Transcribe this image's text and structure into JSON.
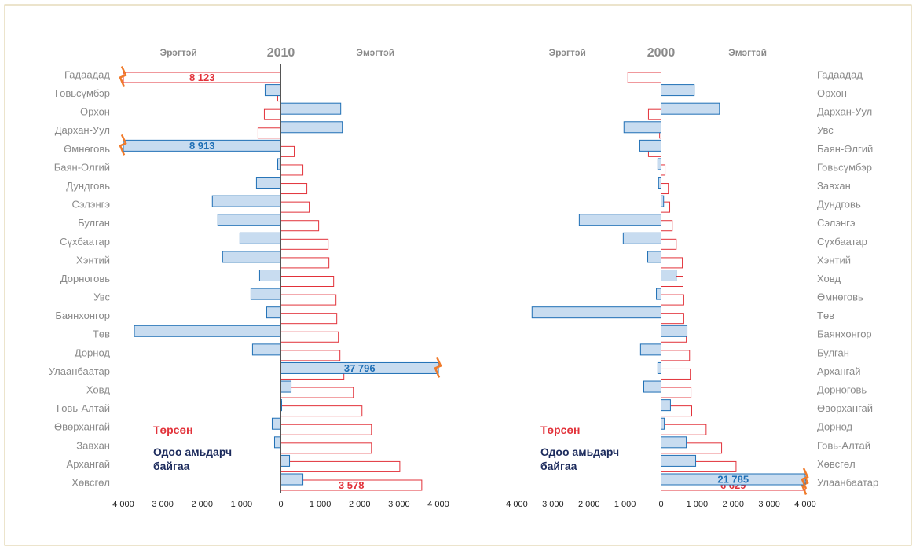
{
  "chart_data": [
    {
      "type": "bar",
      "orientation": "horizontal",
      "title": "2010",
      "left_label": "Эрэгтэй",
      "right_label": "Эмэгтэй",
      "category_side": "left",
      "categories": [
        "Гадаадад",
        "Говьсүмбэр",
        "Орхон",
        "Дархан-Уул",
        "Өмнөговь",
        "Баян-Өлгий",
        "Дундговь",
        "Сэлэнгэ",
        "Булган",
        "Сүхбаатар",
        "Хэнтий",
        "Дорноговь",
        "Увс",
        "Баянхонгор",
        "Төв",
        "Дорнод",
        "Улаанбаатар",
        "Ховд",
        "Говь-Алтай",
        "Өвөрхангай",
        "Завхан",
        "Архангай",
        "Хөвсгөл"
      ],
      "series": [
        {
          "name": "Төрсөн",
          "color": "#e2323a",
          "values": [
            -8123,
            -80,
            -420,
            -580,
            340,
            560,
            660,
            720,
            960,
            1200,
            1220,
            1340,
            1400,
            1420,
            1460,
            1500,
            1600,
            1840,
            2060,
            2300,
            2300,
            3020,
            3578
          ],
          "value_labels": [
            "8 123",
            null,
            null,
            null,
            null,
            null,
            null,
            null,
            null,
            null,
            null,
            null,
            null,
            null,
            null,
            null,
            null,
            null,
            null,
            null,
            null,
            null,
            "3 578"
          ]
        },
        {
          "name": "Одоо амьдарч байгаа",
          "color": "#1f6fb5",
          "values": [
            null,
            -400,
            1520,
            1560,
            -8913,
            -80,
            -620,
            -1740,
            -1600,
            -1040,
            -1480,
            -540,
            -760,
            -360,
            -3720,
            -720,
            37796,
            260,
            20,
            -220,
            -160,
            220,
            560
          ],
          "value_labels": [
            null,
            null,
            null,
            null,
            "8 913",
            null,
            null,
            null,
            null,
            null,
            null,
            null,
            null,
            null,
            null,
            null,
            "37 796",
            null,
            null,
            null,
            null,
            null,
            null
          ]
        }
      ],
      "xlim": [
        -4000,
        4000
      ],
      "xticks": [
        {
          "value": -4000,
          "label": "4 000"
        },
        {
          "value": -3000,
          "label": "3 000"
        },
        {
          "value": -2000,
          "label": "2 000"
        },
        {
          "value": -1000,
          "label": "1 000"
        },
        0,
        {
          "value": 1000,
          "label": "1 000"
        },
        {
          "value": 2000,
          "label": "2 000"
        },
        {
          "value": 3000,
          "label": "3 000"
        },
        {
          "value": 4000,
          "label": "4 000"
        }
      ]
    },
    {
      "type": "bar",
      "orientation": "horizontal",
      "title": "2000",
      "left_label": "Эрэгтэй",
      "right_label": "Эмэгтэй",
      "category_side": "right",
      "categories": [
        "Гадаадад",
        "Орхон",
        "Дархан-Уул",
        "Увс",
        "Баян-Өлгий",
        "Говьсүмбэр",
        "Завхан",
        "Дундговь",
        "Сэлэнгэ",
        "Сүхбаатар",
        "Хэнтий",
        "Ховд",
        "Өмнөговь",
        "Төв",
        "Баянхонгор",
        "Булган",
        "Архангай",
        "Дорноговь",
        "Өвөрхангай",
        "Дорнод",
        "Говь-Алтай",
        "Хөвсгөл",
        "Улаанбаатар"
      ],
      "series": [
        {
          "name": "Төрсөн",
          "color": "#e2323a",
          "values": [
            -920,
            null,
            -350,
            -40,
            -350,
            110,
            200,
            240,
            310,
            420,
            590,
            610,
            630,
            630,
            700,
            790,
            810,
            830,
            850,
            1250,
            1680,
            2080,
            6629
          ],
          "value_labels": [
            null,
            null,
            null,
            null,
            null,
            null,
            null,
            null,
            null,
            null,
            null,
            null,
            null,
            null,
            null,
            null,
            null,
            null,
            null,
            null,
            null,
            null,
            "6 629"
          ]
        },
        {
          "name": "Одоо амьдарч байгаа",
          "color": "#1f6fb5",
          "values": [
            null,
            920,
            1620,
            -1030,
            -590,
            -90,
            -70,
            70,
            -2270,
            -1050,
            -370,
            420,
            -130,
            -3580,
            720,
            -570,
            -90,
            -480,
            260,
            90,
            700,
            960,
            21785
          ],
          "value_labels": [
            null,
            null,
            null,
            null,
            null,
            null,
            null,
            null,
            null,
            null,
            null,
            null,
            null,
            null,
            null,
            null,
            null,
            null,
            null,
            null,
            null,
            null,
            "21 785"
          ]
        }
      ],
      "xlim": [
        -4000,
        4000
      ],
      "xticks": [
        {
          "value": -4000,
          "label": "4 000"
        },
        {
          "value": -3000,
          "label": "3 000"
        },
        {
          "value": -2000,
          "label": "2 000"
        },
        {
          "value": -1000,
          "label": "1 000"
        },
        0,
        {
          "value": 1000,
          "label": "1 000"
        },
        {
          "value": 2000,
          "label": "2 000"
        },
        {
          "value": 3000,
          "label": "3 000"
        },
        {
          "value": 4000,
          "label": "4 000"
        }
      ]
    }
  ]
}
